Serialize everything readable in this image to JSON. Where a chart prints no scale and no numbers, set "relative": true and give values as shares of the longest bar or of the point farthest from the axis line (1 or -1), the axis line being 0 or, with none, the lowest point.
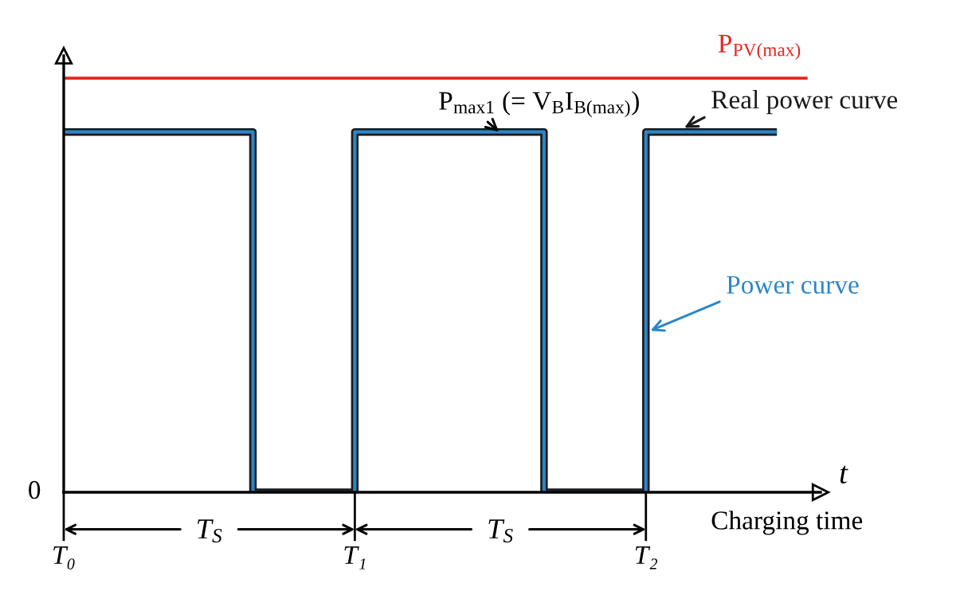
{
  "chart_data": {
    "type": "step",
    "relative": true,
    "xlabel": "t",
    "categories": [
      "T₀",
      null,
      null,
      null,
      null,
      null,
      null,
      null,
      null,
      null,
      null,
      null,
      null,
      null,
      null,
      null,
      null,
      null,
      null,
      null,
      "T₁",
      null,
      null,
      null,
      null,
      null,
      null,
      null,
      null,
      null,
      null,
      null,
      null,
      null,
      null,
      null,
      null,
      null,
      null,
      null,
      "T₂",
      null,
      null,
      null,
      null,
      null,
      null,
      null,
      null,
      null,
      null,
      null,
      null
    ],
    "series": [
      {
        "name": "P$_{PV(max)}$",
        "type": "line",
        "color": "#e8251f",
        "values": [
          1,
          1,
          1,
          1,
          1,
          1,
          1,
          1,
          1,
          1,
          1,
          1,
          1,
          1,
          1,
          1,
          1,
          1,
          1,
          1,
          1,
          1,
          1,
          1,
          1,
          1,
          1,
          1,
          1,
          1,
          1,
          1,
          1,
          1,
          1,
          1,
          1,
          1,
          1,
          1,
          1,
          1,
          1,
          1,
          1,
          1,
          1,
          1,
          1,
          1,
          1,
          1,
          null
        ]
      },
      {
        "name": "Real power curve",
        "color": "#1a1a1a",
        "values": [
          0.87,
          0.87,
          0.87,
          0.87,
          0.87,
          0.87,
          0.87,
          0.87,
          0.87,
          0.87,
          0.87,
          0.87,
          0.87,
          0,
          0,
          0,
          0,
          0,
          0,
          0,
          0.87,
          0.87,
          0.87,
          0.87,
          0.87,
          0.87,
          0.87,
          0.87,
          0.87,
          0.87,
          0.87,
          0.87,
          0.87,
          0,
          0,
          0,
          0,
          0,
          0,
          0,
          0.87,
          0.87,
          0.87,
          0.87,
          0.87,
          0.87,
          0.87,
          0.87,
          0.87,
          0.87,
          null,
          null,
          null
        ]
      },
      {
        "name": "Power curve",
        "color": "#2a86c8",
        "values": [
          0.87,
          0.87,
          0.87,
          0.87,
          0.87,
          0.87,
          0.87,
          0.87,
          0.87,
          0.87,
          0.87,
          0.87,
          0.87,
          0,
          0,
          0,
          0,
          0,
          0,
          0,
          0.87,
          0.87,
          0.87,
          0.87,
          0.87,
          0.87,
          0.87,
          0.87,
          0.87,
          0.87,
          0.87,
          0.87,
          0.87,
          0,
          0,
          0,
          0,
          0,
          0,
          0,
          0.87,
          0.87,
          0.87,
          0.87,
          0.87,
          0.87,
          0.87,
          0.87,
          0.87,
          0.87,
          null,
          null,
          null
        ]
      }
    ],
    "annotations": [
      "0",
      {
        "text": "P$_{max1}$ (= V$_{B}$I$_{B(max)}$)",
        "y": 0.87
      },
      "T$_{S}$",
      "T$_{S}$",
      "Charging time"
    ],
    "grid": false
  }
}
